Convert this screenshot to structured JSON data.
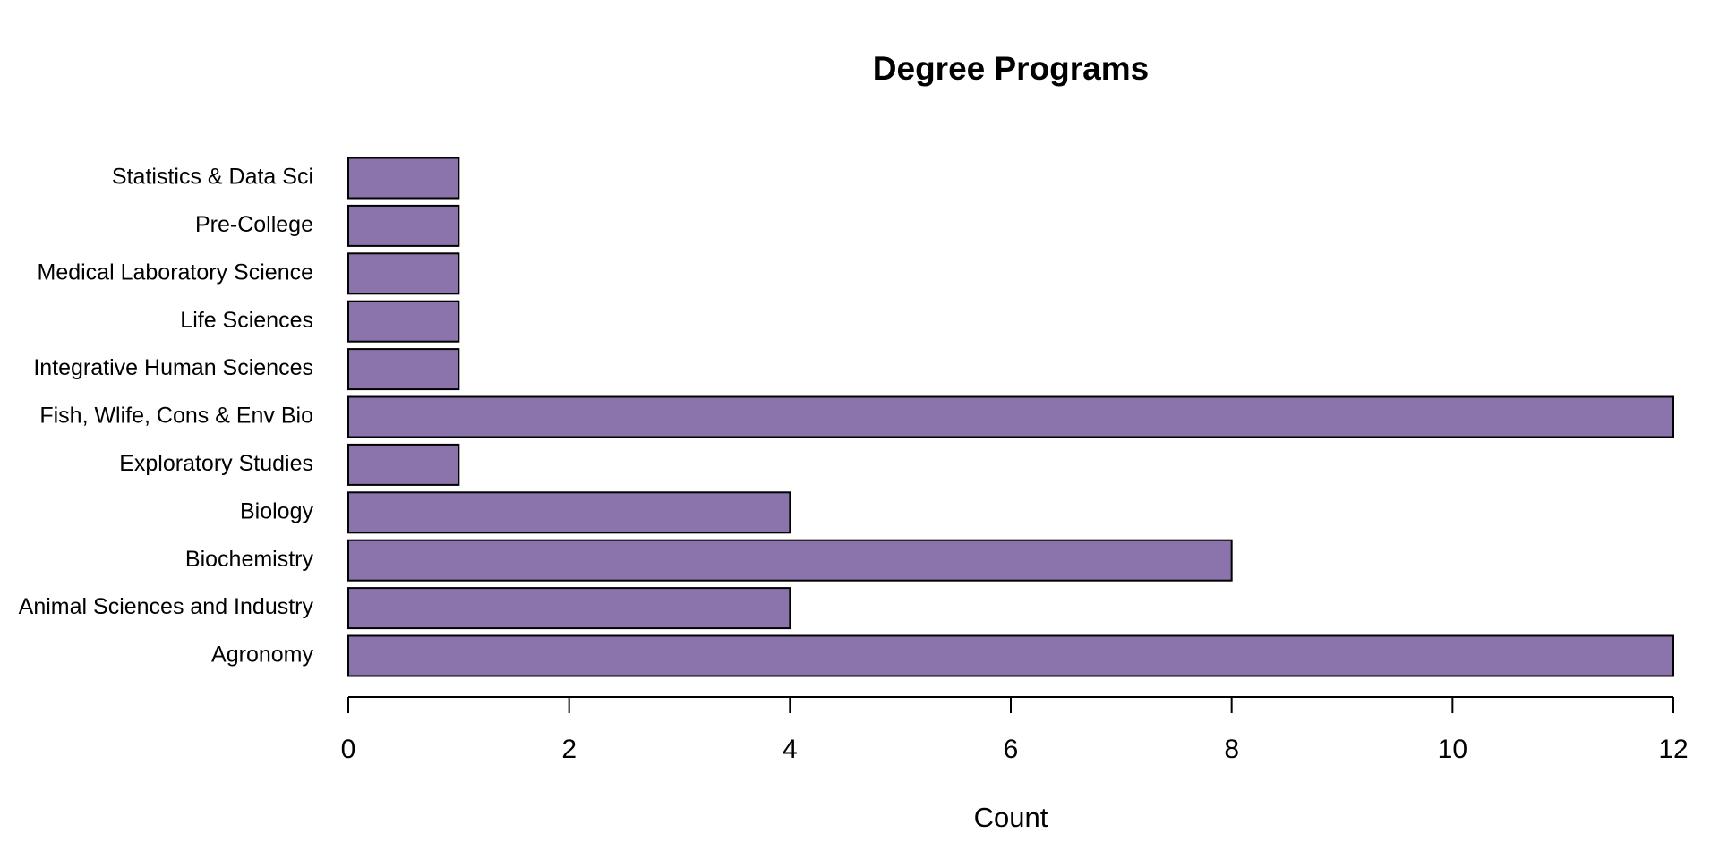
{
  "chart_data": {
    "type": "bar",
    "orientation": "horizontal",
    "title": "Degree Programs",
    "x_label": "Count",
    "categories": [
      "Agronomy",
      "Animal Sciences and Industry",
      "Biochemistry",
      "Biology",
      "Exploratory Studies",
      "Fish, Wlife, Cons & Env Bio",
      "Integrative Human Sciences",
      "Life Sciences",
      "Medical Laboratory Science",
      "Pre-College",
      "Statistics & Data Sci"
    ],
    "values": [
      12,
      4,
      8,
      4,
      1,
      12,
      1,
      1,
      1,
      1,
      1
    ],
    "color": "#8b74ab",
    "xlim": [
      0,
      12
    ],
    "xticks": [
      0,
      2,
      4,
      6,
      8,
      10,
      12
    ],
    "grid": false
  }
}
